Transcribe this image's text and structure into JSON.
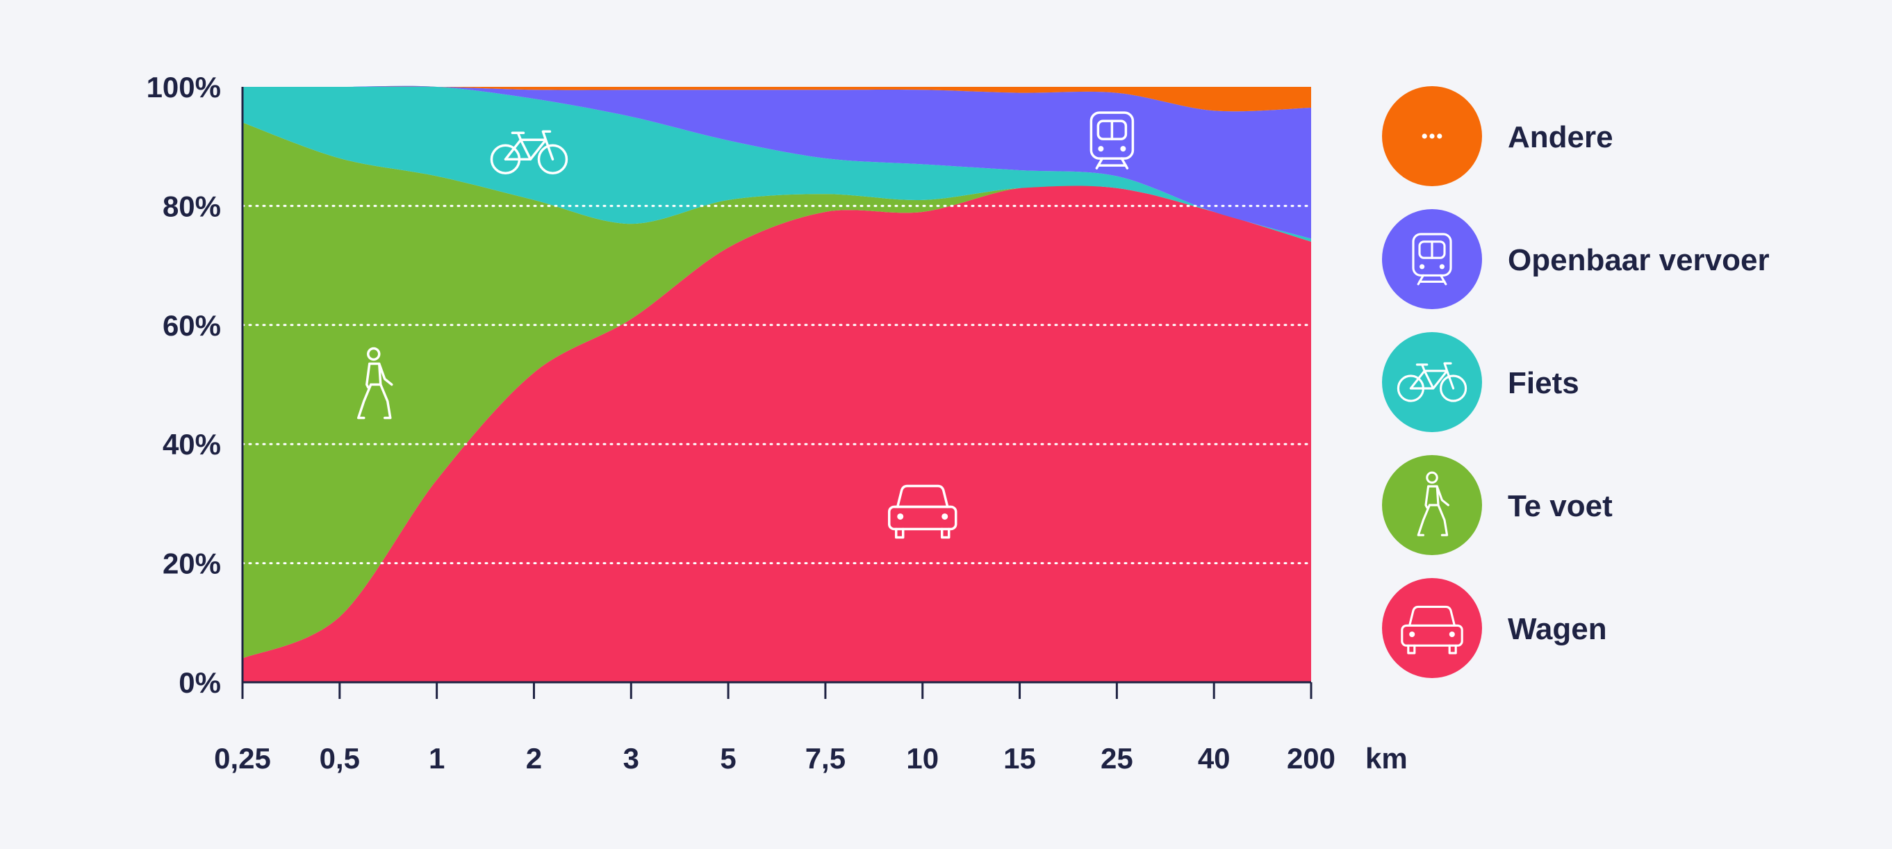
{
  "chart_data": {
    "type": "area",
    "stacked": true,
    "normalized": true,
    "x_unit": "km",
    "categories": [
      "0,25",
      "0,5",
      "1",
      "2",
      "3",
      "5",
      "7,5",
      "10",
      "15",
      "25",
      "40",
      "200"
    ],
    "ylim": [
      0,
      100
    ],
    "yticks": [
      "0%",
      "20%",
      "40%",
      "60%",
      "80%",
      "100%"
    ],
    "grid": "horizontal dotted",
    "legend_position": "right",
    "series": [
      {
        "name": "Wagen",
        "color": "#f3325c",
        "icon": "car-icon",
        "values": [
          4,
          11,
          34,
          52,
          61,
          73,
          79,
          79,
          83,
          83,
          79,
          74
        ]
      },
      {
        "name": "Te voet",
        "color": "#79b934",
        "icon": "pedestrian-icon",
        "values": [
          90,
          77,
          51,
          29,
          16,
          8,
          3,
          2,
          0,
          0,
          0,
          0
        ]
      },
      {
        "name": "Fiets",
        "color": "#2ec8c3",
        "icon": "bicycle-icon",
        "values": [
          6,
          12,
          15,
          17,
          18,
          10,
          6,
          6,
          3,
          2,
          0,
          0.5
        ]
      },
      {
        "name": "Openbaar vervoer",
        "color": "#6c63fa",
        "icon": "train-icon",
        "values": [
          0,
          0,
          0,
          1.5,
          4.5,
          8.5,
          11.5,
          12.5,
          13,
          14,
          17,
          22
        ]
      },
      {
        "name": "Andere",
        "color": "#f66a08",
        "icon": "more-dots-icon",
        "values": [
          0,
          0,
          0,
          0.5,
          0.5,
          0.5,
          0.5,
          0.5,
          1,
          1,
          4,
          3.5
        ]
      }
    ],
    "legend_order": [
      "Andere",
      "Openbaar vervoer",
      "Fiets",
      "Te voet",
      "Wagen"
    ]
  }
}
